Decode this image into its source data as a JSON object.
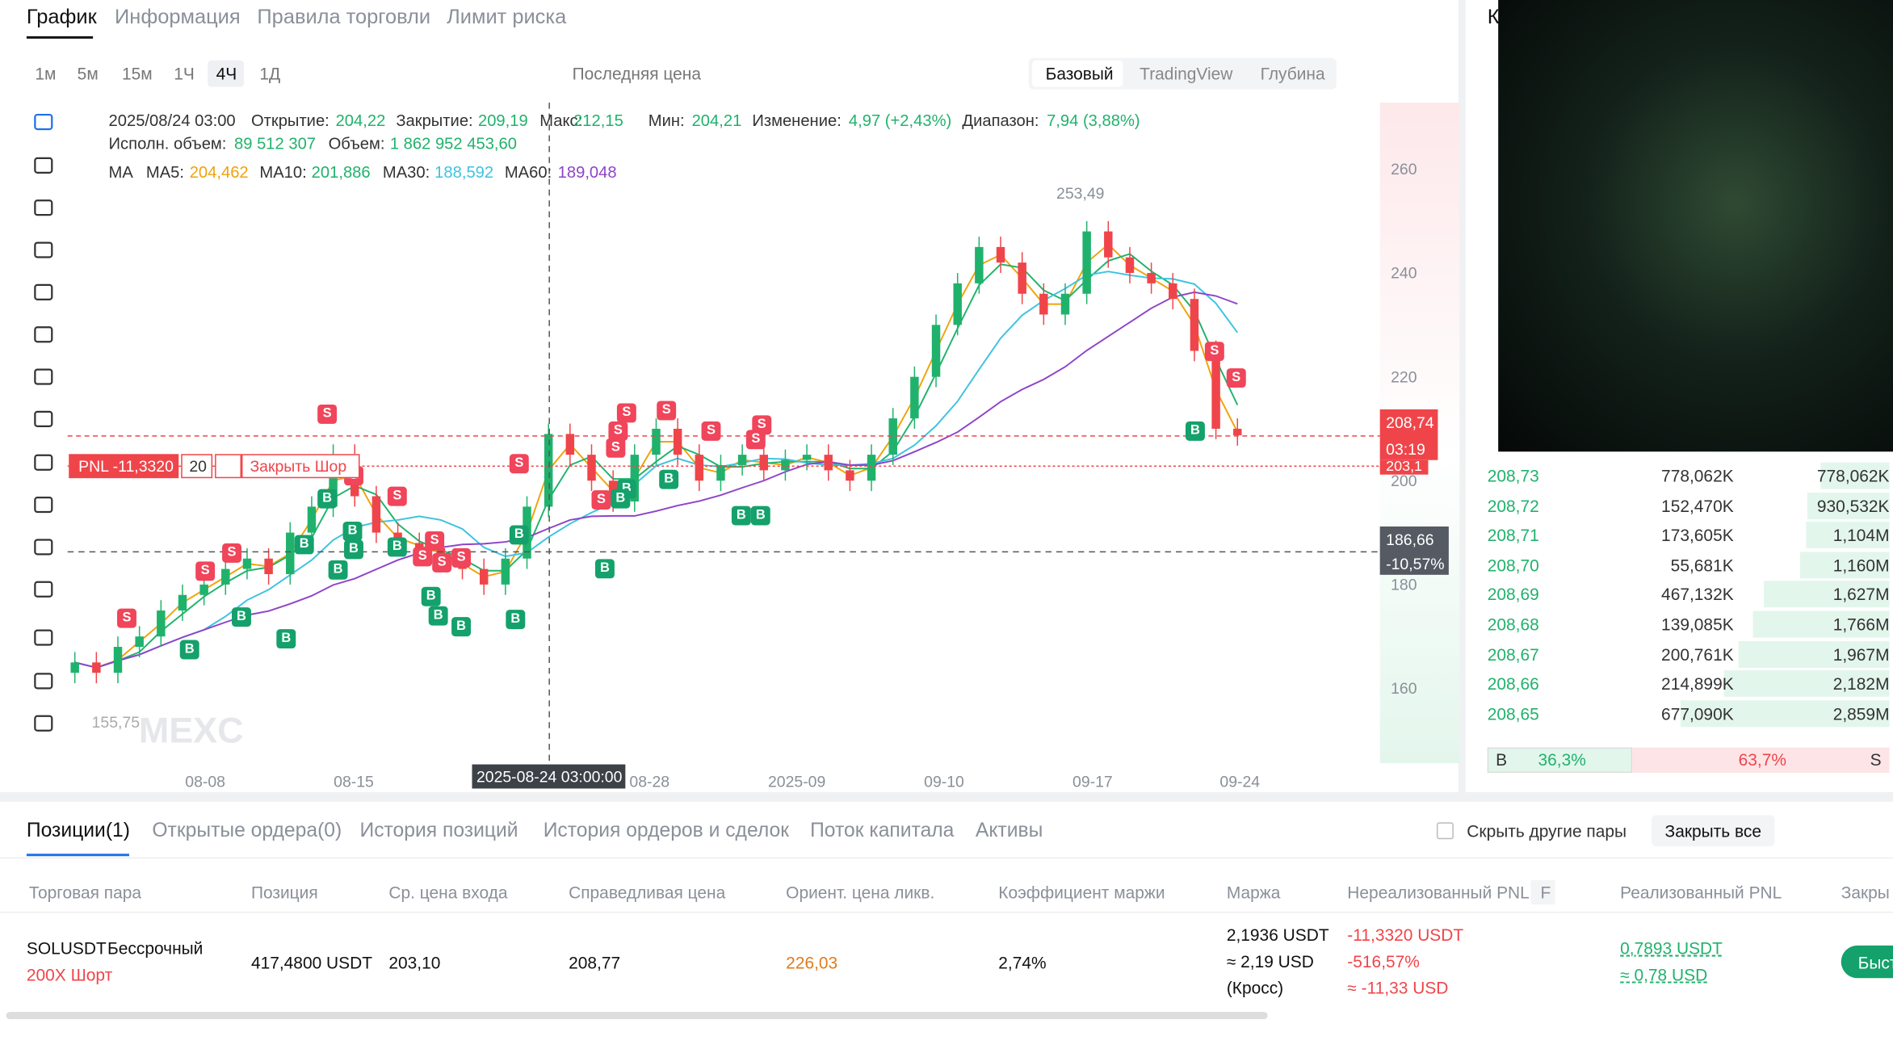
{
  "tabs": [
    "График",
    "Информация",
    "Правила торговли",
    "Лимит риска"
  ],
  "intervals": [
    "1м",
    "5м",
    "15м",
    "1Ч",
    "4Ч",
    "1Д"
  ],
  "price_type": "Последняя цена",
  "views": [
    "Базовый",
    "TradingView",
    "Глубина"
  ],
  "side_title": "К",
  "ohlc": {
    "date": "2025/08/24 03:00",
    "open_label": "Открытие:",
    "open": "204,22",
    "close_label": "Закрытие:",
    "close": "209,19",
    "high_label": "Макс:",
    "high": "212,15",
    "low_label": "Мин:",
    "low": "204,21",
    "change_label": "Изменение:",
    "change": "4,97 (+2,43%)",
    "range_label": "Диапазон:",
    "range": "7,94 (3,88%)",
    "exec_volume_label": "Исполн. объем:",
    "exec_volume": "89 512 307",
    "volume_label": "Объем:",
    "volume": "1 862 952 453,60"
  },
  "ma": {
    "label": "MA",
    "items": [
      {
        "name": "MA5:",
        "value": "204,462",
        "color": "#f0a30a"
      },
      {
        "name": "MA10:",
        "value": "201,886",
        "color": "#20b26c"
      },
      {
        "name": "MA30:",
        "value": "188,592",
        "color": "#3cc3e0"
      },
      {
        "name": "MA60:",
        "value": "189,048",
        "color": "#8e44c9"
      }
    ]
  },
  "chart": {
    "type": "candlestick",
    "closes": [
      165,
      163,
      168,
      170,
      175,
      178,
      180,
      183,
      185,
      182,
      190,
      195,
      205,
      197,
      190,
      188,
      187,
      185,
      183,
      180,
      185,
      195,
      209,
      205,
      200,
      196,
      205,
      210,
      205,
      200,
      203,
      205,
      202,
      204,
      205,
      202,
      200,
      205,
      212,
      220,
      230,
      238,
      245,
      242,
      236,
      232,
      236,
      248,
      243,
      240,
      238,
      235,
      225,
      210,
      208.74
    ],
    "ylim": [
      145.6,
      272.8
    ],
    "yticks": [
      160,
      180,
      200,
      220,
      240,
      260
    ],
    "xticks": [
      "08-08",
      "08-15",
      "08-28",
      "2025-09",
      "09-10",
      "09-17",
      "09-24"
    ],
    "high_label": "253,49",
    "low_label": "155,75",
    "signals": [
      "S",
      "S",
      "S",
      "S",
      "S",
      "S",
      "S",
      "S",
      "S",
      "S",
      "S",
      "S",
      "S",
      "S",
      "S",
      "S",
      "S",
      "S",
      "S",
      "S",
      "S",
      "B",
      "B",
      "B",
      "B",
      "B",
      "B",
      "B",
      "B",
      "B",
      "B",
      "B",
      "B",
      "B",
      "B",
      "B",
      "B",
      "B",
      "B",
      "B",
      "B",
      "B"
    ],
    "watermark": "MEXC",
    "crosshair_date": "2025-08-24 03:00:00",
    "last_price": "208,74",
    "countdown": "03:19",
    "entry_price": "203,1",
    "cursor_price": "186,66",
    "cursor_change": "-10,57%",
    "position_line": {
      "pnl": "PNL -11,3320",
      "qty": "20",
      "close": "Закрыть Шор"
    }
  },
  "orderbook": {
    "rows": [
      [
        "208,73",
        "778,062K",
        "778,062K"
      ],
      [
        "208,72",
        "152,470K",
        "930,532K"
      ],
      [
        "208,71",
        "173,605K",
        "1,104M"
      ],
      [
        "208,70",
        "55,681K",
        "1,160M"
      ],
      [
        "208,69",
        "467,132K",
        "1,627M"
      ],
      [
        "208,68",
        "139,085K",
        "1,766M"
      ],
      [
        "208,67",
        "200,761K",
        "1,967M"
      ],
      [
        "208,66",
        "214,899K",
        "2,182M"
      ],
      [
        "208,65",
        "677,090K",
        "2,859M"
      ]
    ],
    "ratio": {
      "buy_label": "B",
      "buy": "36,3%",
      "sell": "63,7%",
      "sell_label": "S"
    }
  },
  "positions": {
    "tabs": [
      "Позиции(1)",
      "Открытые ордера(0)",
      "История позиций",
      "История ордеров и сделок",
      "Поток капитала",
      "Активы"
    ],
    "hide_others": "Скрыть другие пары",
    "close_all": "Закрыть все",
    "columns": [
      "Торговая пара",
      "Позиция",
      "Ср. цена входа",
      "Справедливая цена",
      "Ориент. цена ликв.",
      "Коэффициент маржи",
      "Маржа",
      "Нереализованный PNL",
      "F",
      "Реализованный PNL",
      "Закры"
    ],
    "row": {
      "pair": "SOLUSDT",
      "kind": "Бессрочный",
      "side": "200X Шорт",
      "size": "417,4800 USDT",
      "entry": "203,10",
      "fair": "208,77",
      "liq": "226,03",
      "margin_ratio": "2,74%",
      "margin": [
        "2,1936 USDT",
        "≈ 2,19 USD",
        "(Кросс)"
      ],
      "unrealized": [
        "-11,3320 USDT",
        "-516,57%",
        "≈ -11,33 USD"
      ],
      "realized": [
        "0,7893 USDT",
        "≈ 0,78 USD"
      ],
      "action": "Быст"
    }
  }
}
